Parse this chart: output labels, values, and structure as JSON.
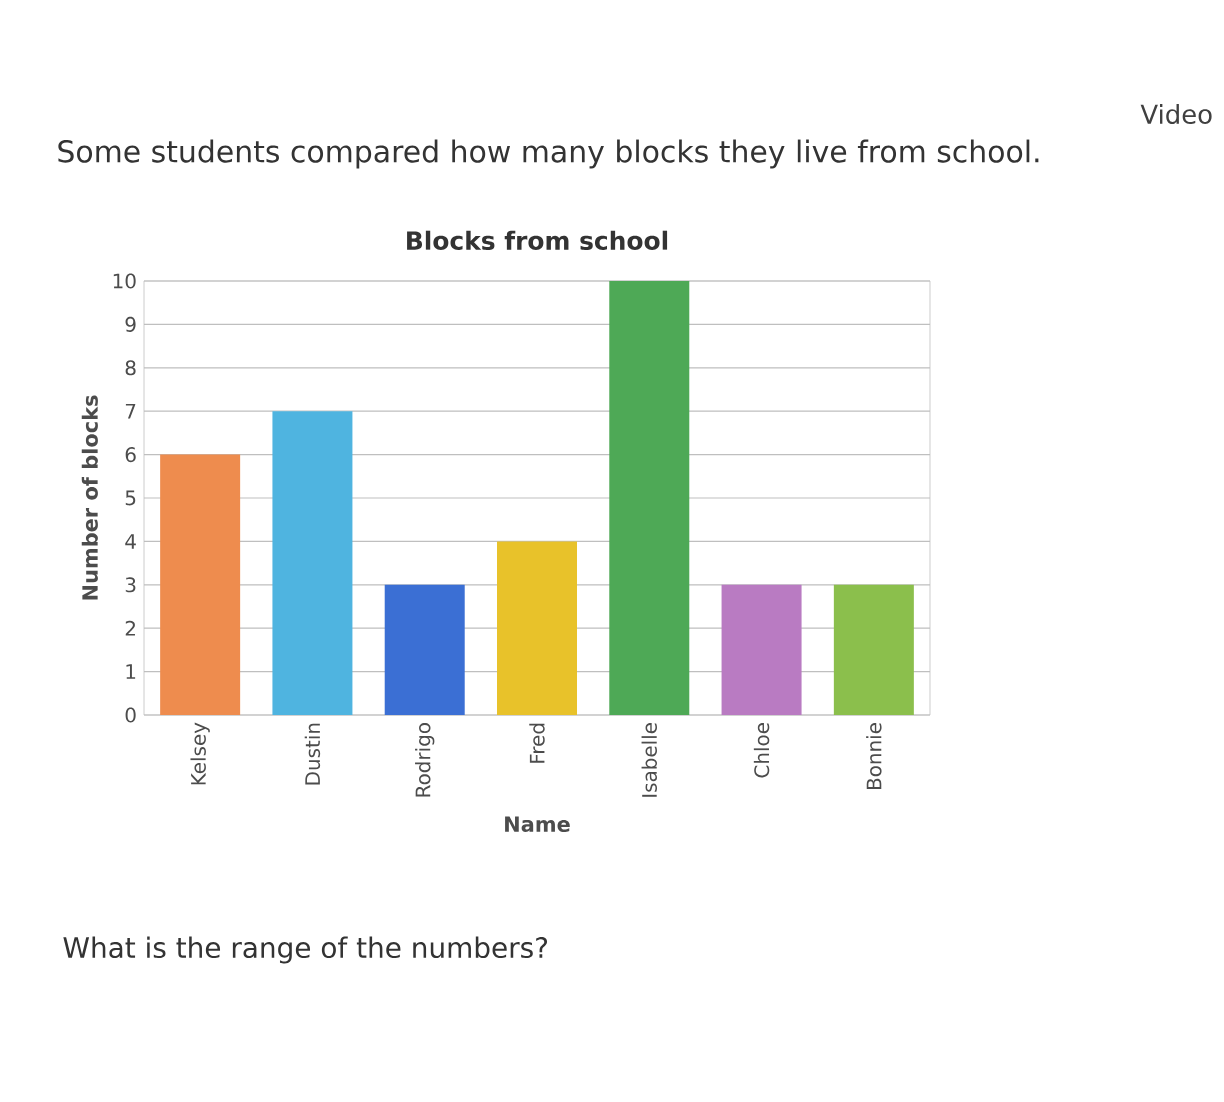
{
  "chart_data": {
    "type": "bar",
    "title": "Blocks from school",
    "xlabel": "Name",
    "ylabel": "Number of blocks",
    "categories": [
      "Kelsey",
      "Dustin",
      "Rodrigo",
      "Fred",
      "Isabelle",
      "Chloe",
      "Bonnie"
    ],
    "values": [
      6,
      7,
      3,
      4,
      10,
      3,
      3
    ],
    "colors": [
      "#ee8c4e",
      "#4fb4e0",
      "#3b6fd4",
      "#e8c22a",
      "#4ea956",
      "#b97bc2",
      "#8bbf4c"
    ],
    "ylim": [
      0,
      10
    ],
    "yticks": [
      0,
      1,
      2,
      3,
      4,
      5,
      6,
      7,
      8,
      9,
      10
    ],
    "grid": "y",
    "annotations": [
      "Some students compared how many blocks they live from school.",
      "What is the range of the numbers?",
      "Video"
    ]
  }
}
